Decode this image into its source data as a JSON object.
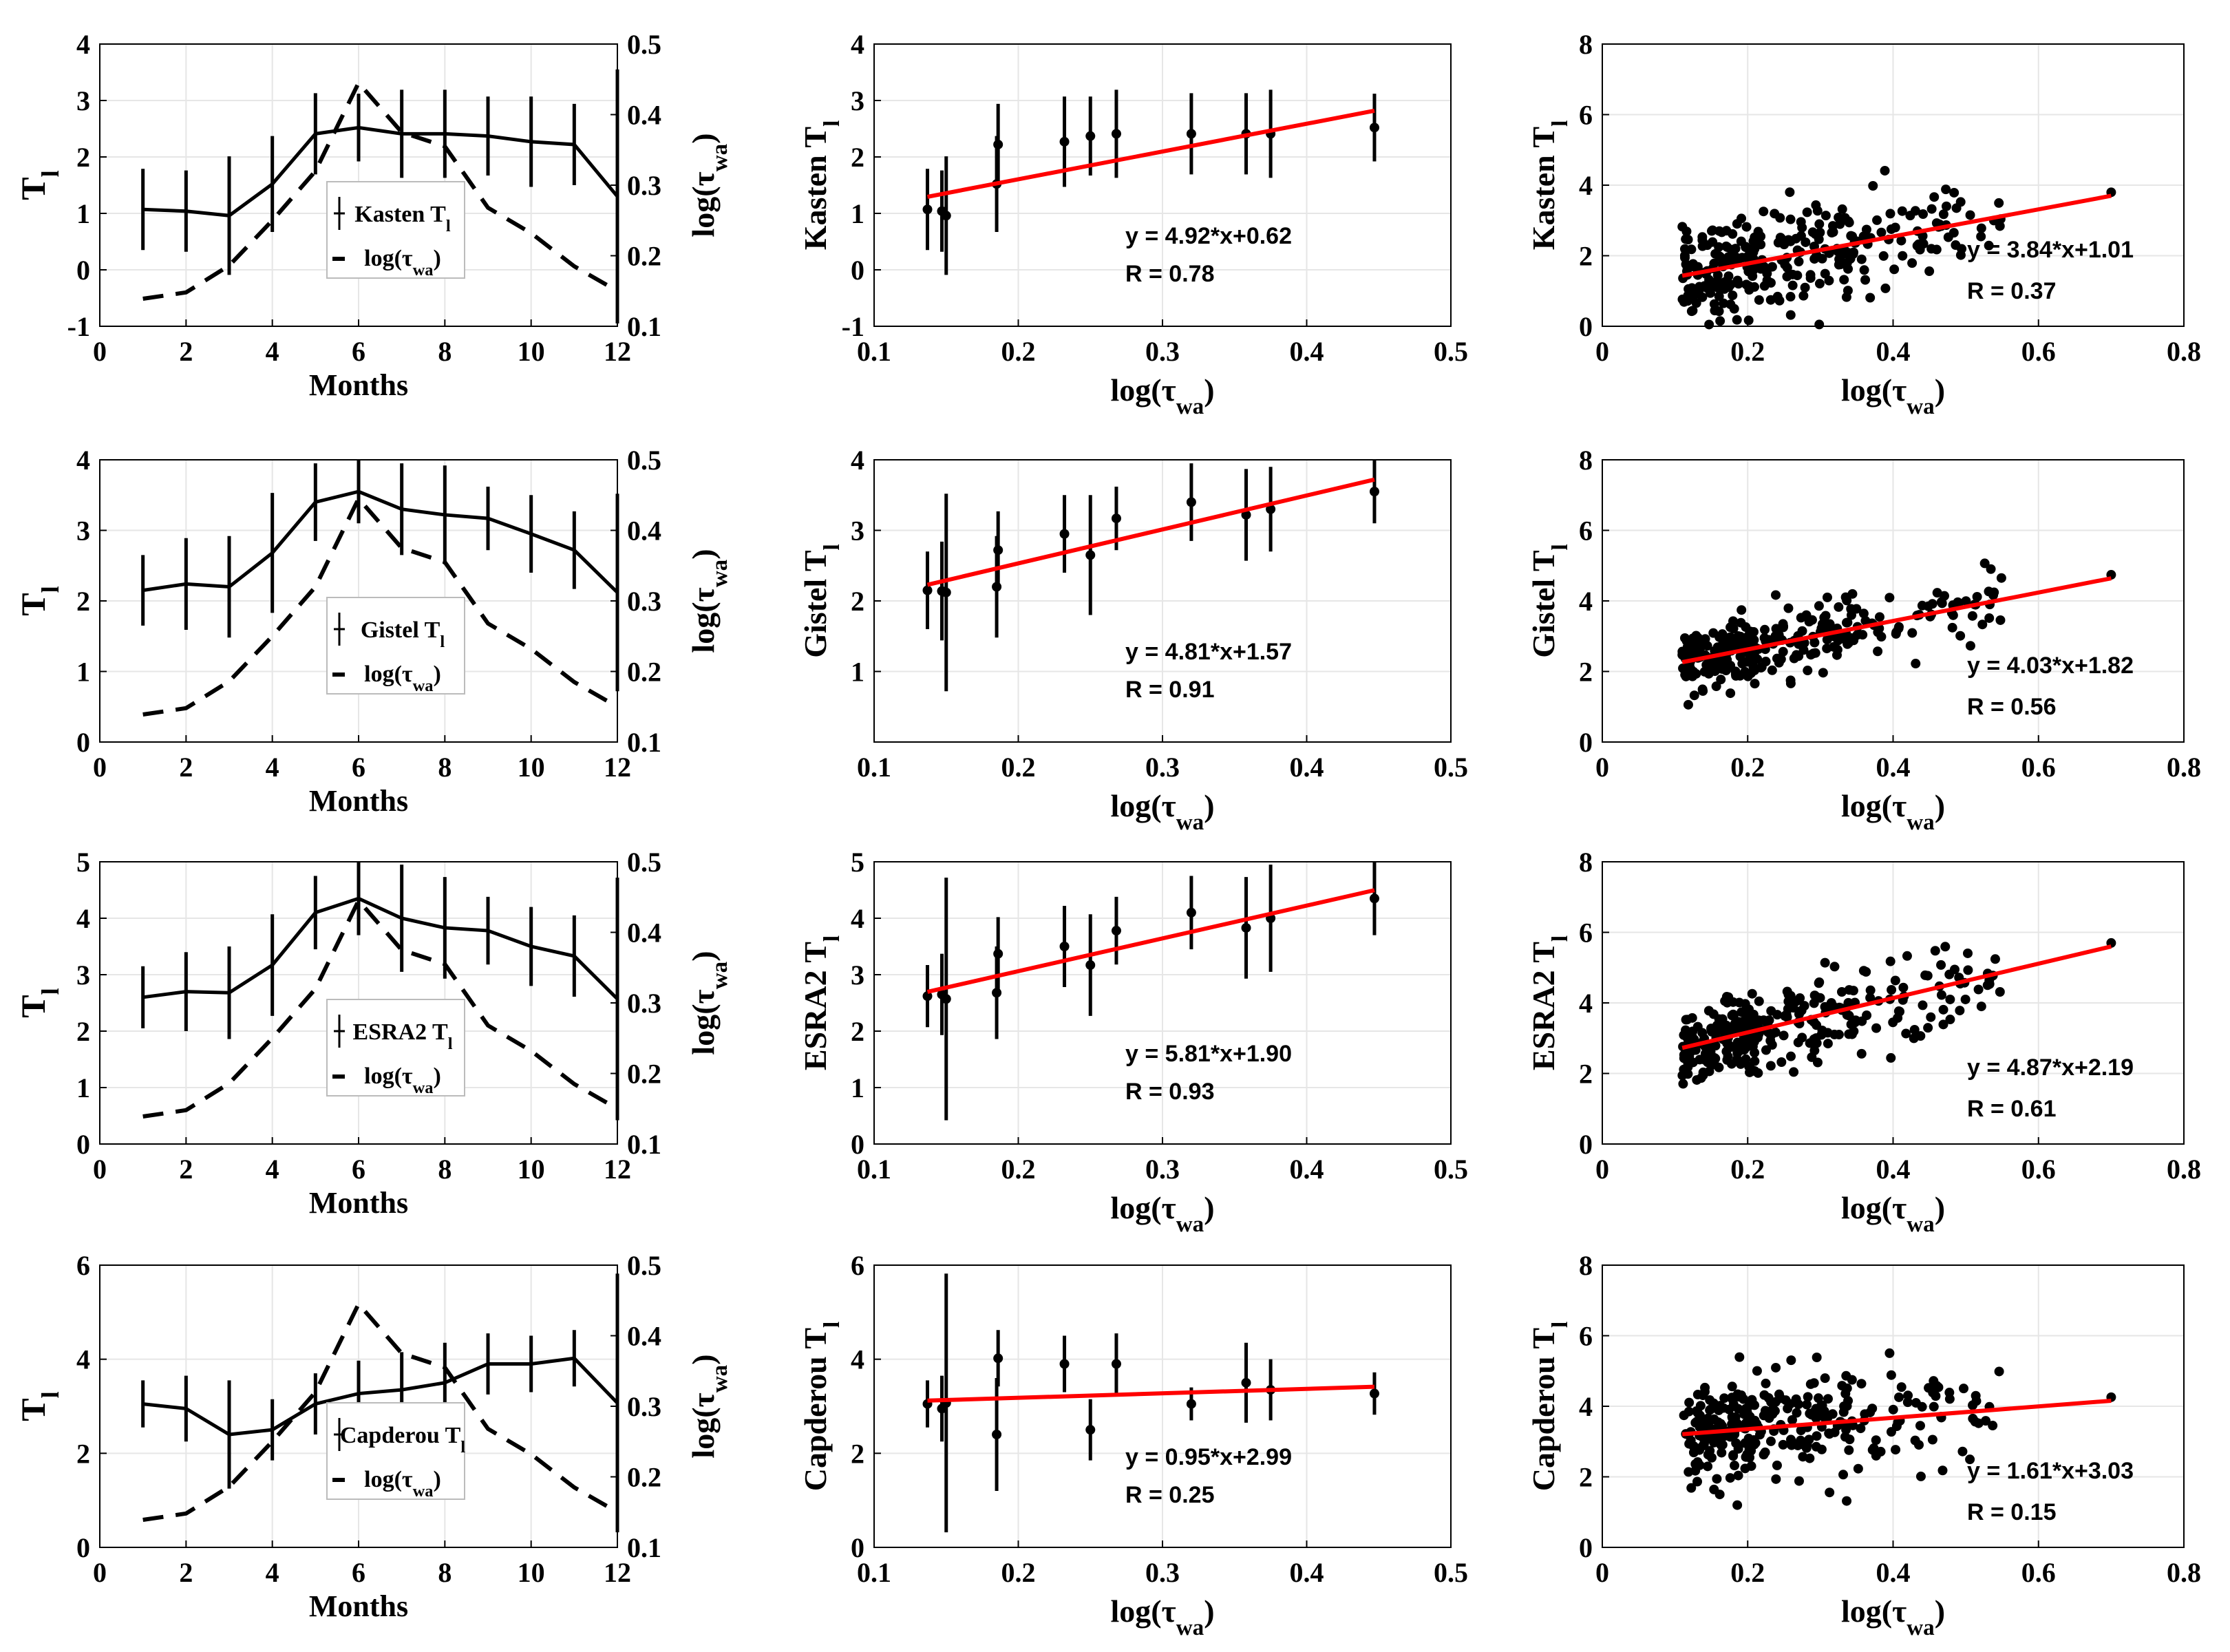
{
  "chart_data": {
    "figure_type": "4x3 grid of line, errorbar and scatter panels",
    "shared": {
      "months_xlabel": "Months",
      "left_ylabel": "T",
      "left_ylabel_sub": "l",
      "right_ylabel": "log(τ",
      "right_ylabel_sub": "wa",
      "right_ylabel_close": ")",
      "log_xlabel": "log(τ",
      "log_xlabel_sub": "wa",
      "log_xlabel_close": ")",
      "legend_log_text": "log(τ",
      "legend_log_sub": "wa",
      "legend_log_close": ")",
      "monthly_xticks": [
        "0",
        "2",
        "4",
        "6",
        "8",
        "10",
        "12"
      ],
      "monthly_rticks": [
        "0.1",
        "0.2",
        "0.3",
        "0.4",
        "0.5"
      ],
      "mid_xticks": [
        "0.1",
        "0.2",
        "0.3",
        "0.4",
        "0.5"
      ],
      "right_xticks": [
        "0",
        "0.2",
        "0.4",
        "0.6",
        "0.8"
      ],
      "right_yticks": [
        "0",
        "2",
        "4",
        "6",
        "8"
      ],
      "tau_monthly": [
        0.139,
        0.148,
        0.186,
        0.25,
        0.32,
        0.445,
        0.375,
        0.355,
        0.268,
        0.232,
        0.185,
        0.15
      ],
      "monthly_xlim": [
        0,
        12
      ],
      "monthly_rlim": [
        0.1,
        0.5
      ],
      "mid_xlim": [
        0.1,
        0.5
      ],
      "right_xlim": [
        0,
        0.8
      ],
      "right_ylim": [
        0,
        8
      ],
      "colors": {
        "fit": "#ff0000",
        "data": "#000000",
        "grid": "#e6e6e6"
      }
    },
    "rows": [
      {
        "model": "Kasten",
        "ylabel": "Kasten T",
        "legend_label": "Kasten T",
        "ylim_left": [
          -1,
          4
        ],
        "left_ticks": [
          "-1",
          "0",
          "1",
          "2",
          "3",
          "4"
        ],
        "monthly_mean": [
          1.07,
          1.04,
          0.96,
          1.52,
          2.41,
          2.52,
          2.41,
          2.41,
          2.37,
          2.27,
          2.22,
          1.3
        ],
        "monthly_err": [
          0.72,
          0.72,
          1.05,
          0.85,
          0.72,
          0.6,
          0.78,
          0.78,
          0.7,
          0.8,
          0.72,
          2.25
        ],
        "ylim_mid": [
          -1,
          4
        ],
        "mid_ticks": [
          "-1",
          "0",
          "1",
          "2",
          "3",
          "4"
        ],
        "errorbar_points": [
          {
            "x": 0.137,
            "y": 1.07,
            "err": 0.72
          },
          {
            "x": 0.147,
            "y": 1.04,
            "err": 0.72
          },
          {
            "x": 0.15,
            "y": 0.96,
            "err": 1.05
          },
          {
            "x": 0.185,
            "y": 1.52,
            "err": 0.85
          },
          {
            "x": 0.186,
            "y": 2.22,
            "err": 0.72
          },
          {
            "x": 0.232,
            "y": 2.27,
            "err": 0.8
          },
          {
            "x": 0.25,
            "y": 2.37,
            "err": 0.7
          },
          {
            "x": 0.268,
            "y": 2.41,
            "err": 0.78
          },
          {
            "x": 0.32,
            "y": 2.41,
            "err": 0.72
          },
          {
            "x": 0.358,
            "y": 2.41,
            "err": 0.72
          },
          {
            "x": 0.375,
            "y": 2.41,
            "err": 0.78
          },
          {
            "x": 0.447,
            "y": 2.52,
            "err": 0.6
          }
        ],
        "fit_mid": {
          "slope": 4.92,
          "intercept": 0.62,
          "x_range": [
            0.137,
            0.447
          ],
          "equation": "y = 4.92*x+0.62",
          "r": "R = 0.78"
        },
        "scatter_ylabel": "Kasten T",
        "fit_scatter": {
          "slope": 3.84,
          "intercept": 1.01,
          "x_range": [
            0.11,
            0.7
          ],
          "equation": "y = 3.84*x+1.01",
          "r": "R = 0.37"
        },
        "scatter_sd": 0.7,
        "scatter_seed": 11
      },
      {
        "model": "Gistel",
        "ylabel": "Gistel T",
        "legend_label": "Gistel T",
        "ylim_left": [
          0,
          4
        ],
        "left_ticks": [
          "0",
          "1",
          "2",
          "3",
          "4"
        ],
        "monthly_mean": [
          2.15,
          2.24,
          2.2,
          2.68,
          3.4,
          3.55,
          3.3,
          3.22,
          3.17,
          2.95,
          2.72,
          2.12
        ],
        "monthly_err": [
          0.5,
          0.65,
          0.72,
          0.85,
          0.55,
          0.45,
          0.65,
          0.7,
          0.45,
          0.55,
          0.55,
          1.4
        ],
        "ylim_mid": [
          0,
          4
        ],
        "mid_ticks": [
          "1",
          "2",
          "3",
          "4"
        ],
        "errorbar_points": [
          {
            "x": 0.137,
            "y": 2.15,
            "err": 0.55
          },
          {
            "x": 0.147,
            "y": 2.14,
            "err": 0.7
          },
          {
            "x": 0.15,
            "y": 2.12,
            "err": 1.4
          },
          {
            "x": 0.185,
            "y": 2.2,
            "err": 0.72
          },
          {
            "x": 0.186,
            "y": 2.72,
            "err": 0.55
          },
          {
            "x": 0.232,
            "y": 2.95,
            "err": 0.55
          },
          {
            "x": 0.25,
            "y": 2.65,
            "err": 0.85
          },
          {
            "x": 0.268,
            "y": 3.17,
            "err": 0.45
          },
          {
            "x": 0.32,
            "y": 3.4,
            "err": 0.55
          },
          {
            "x": 0.358,
            "y": 3.22,
            "err": 0.65
          },
          {
            "x": 0.375,
            "y": 3.3,
            "err": 0.6
          },
          {
            "x": 0.447,
            "y": 3.55,
            "err": 0.45
          }
        ],
        "fit_mid": {
          "slope": 4.81,
          "intercept": 1.57,
          "x_range": [
            0.137,
            0.447
          ],
          "equation": "y = 4.81*x+1.57",
          "r": "R = 0.91"
        },
        "scatter_ylabel": "Gistel T",
        "fit_scatter": {
          "slope": 4.03,
          "intercept": 1.82,
          "x_range": [
            0.11,
            0.7
          ],
          "equation": "y = 4.03*x+1.82",
          "r": "R = 0.56"
        },
        "scatter_sd": 0.45,
        "scatter_seed": 23
      },
      {
        "model": "ESRA2",
        "ylabel": "ESRA2 T",
        "legend_label": "ESRA2 T",
        "ylim_left": [
          0,
          5
        ],
        "left_ticks": [
          "0",
          "1",
          "2",
          "3",
          "4",
          "5"
        ],
        "monthly_mean": [
          2.6,
          2.7,
          2.68,
          3.17,
          4.1,
          4.35,
          4.0,
          3.83,
          3.78,
          3.5,
          3.33,
          2.57
        ],
        "monthly_err": [
          0.55,
          0.7,
          0.82,
          0.9,
          0.65,
          0.65,
          0.95,
          0.9,
          0.6,
          0.7,
          0.72,
          2.15
        ],
        "ylim_mid": [
          0,
          5
        ],
        "mid_ticks": [
          "0",
          "1",
          "2",
          "3",
          "4",
          "5"
        ],
        "errorbar_points": [
          {
            "x": 0.137,
            "y": 2.62,
            "err": 0.55
          },
          {
            "x": 0.147,
            "y": 2.65,
            "err": 0.72
          },
          {
            "x": 0.15,
            "y": 2.57,
            "err": 2.15
          },
          {
            "x": 0.185,
            "y": 2.68,
            "err": 0.82
          },
          {
            "x": 0.186,
            "y": 3.37,
            "err": 0.65
          },
          {
            "x": 0.232,
            "y": 3.5,
            "err": 0.72
          },
          {
            "x": 0.25,
            "y": 3.17,
            "err": 0.9
          },
          {
            "x": 0.268,
            "y": 3.78,
            "err": 0.6
          },
          {
            "x": 0.32,
            "y": 4.1,
            "err": 0.65
          },
          {
            "x": 0.358,
            "y": 3.83,
            "err": 0.9
          },
          {
            "x": 0.375,
            "y": 4.0,
            "err": 0.95
          },
          {
            "x": 0.447,
            "y": 4.35,
            "err": 0.65
          }
        ],
        "fit_mid": {
          "slope": 5.81,
          "intercept": 1.9,
          "x_range": [
            0.137,
            0.447
          ],
          "equation": "y = 5.81*x+1.90",
          "r": "R = 0.93"
        },
        "scatter_ylabel": "ESRA2 T",
        "fit_scatter": {
          "slope": 4.87,
          "intercept": 2.19,
          "x_range": [
            0.11,
            0.7
          ],
          "equation": "y = 4.87*x+2.19",
          "r": "R = 0.61"
        },
        "scatter_sd": 0.6,
        "scatter_seed": 37
      },
      {
        "model": "Capderou",
        "ylabel": "Capderou T",
        "legend_label": "Capderou T",
        "ylim_left": [
          0,
          6
        ],
        "left_ticks": [
          "0",
          "2",
          "4",
          "6"
        ],
        "monthly_mean": [
          3.05,
          2.95,
          2.4,
          2.5,
          3.05,
          3.27,
          3.35,
          3.5,
          3.9,
          3.9,
          4.02,
          3.07
        ],
        "monthly_err": [
          0.5,
          0.7,
          1.15,
          0.65,
          0.65,
          0.7,
          0.8,
          0.85,
          0.65,
          0.6,
          0.6,
          2.75
        ],
        "ylim_mid": [
          0,
          6
        ],
        "mid_ticks": [
          "0",
          "2",
          "4",
          "6"
        ],
        "errorbar_points": [
          {
            "x": 0.137,
            "y": 3.05,
            "err": 0.5
          },
          {
            "x": 0.147,
            "y": 2.95,
            "err": 0.7
          },
          {
            "x": 0.15,
            "y": 3.07,
            "err": 2.75
          },
          {
            "x": 0.185,
            "y": 2.4,
            "err": 1.2
          },
          {
            "x": 0.186,
            "y": 4.02,
            "err": 0.6
          },
          {
            "x": 0.232,
            "y": 3.9,
            "err": 0.6
          },
          {
            "x": 0.25,
            "y": 2.5,
            "err": 0.65
          },
          {
            "x": 0.268,
            "y": 3.9,
            "err": 0.65
          },
          {
            "x": 0.32,
            "y": 3.05,
            "err": 0.35
          },
          {
            "x": 0.358,
            "y": 3.5,
            "err": 0.85
          },
          {
            "x": 0.375,
            "y": 3.35,
            "err": 0.65
          },
          {
            "x": 0.447,
            "y": 3.27,
            "err": 0.45
          }
        ],
        "fit_mid": {
          "slope": 0.95,
          "intercept": 2.99,
          "x_range": [
            0.137,
            0.447
          ],
          "equation": "y = 0.95*x+2.99",
          "r": "R = 0.25"
        },
        "scatter_ylabel": "Capderou T",
        "fit_scatter": {
          "slope": 1.61,
          "intercept": 3.03,
          "x_range": [
            0.11,
            0.7
          ],
          "equation": "y = 1.61*x+3.03",
          "r": "R = 0.15"
        },
        "scatter_sd": 0.75,
        "scatter_seed": 53
      }
    ]
  }
}
